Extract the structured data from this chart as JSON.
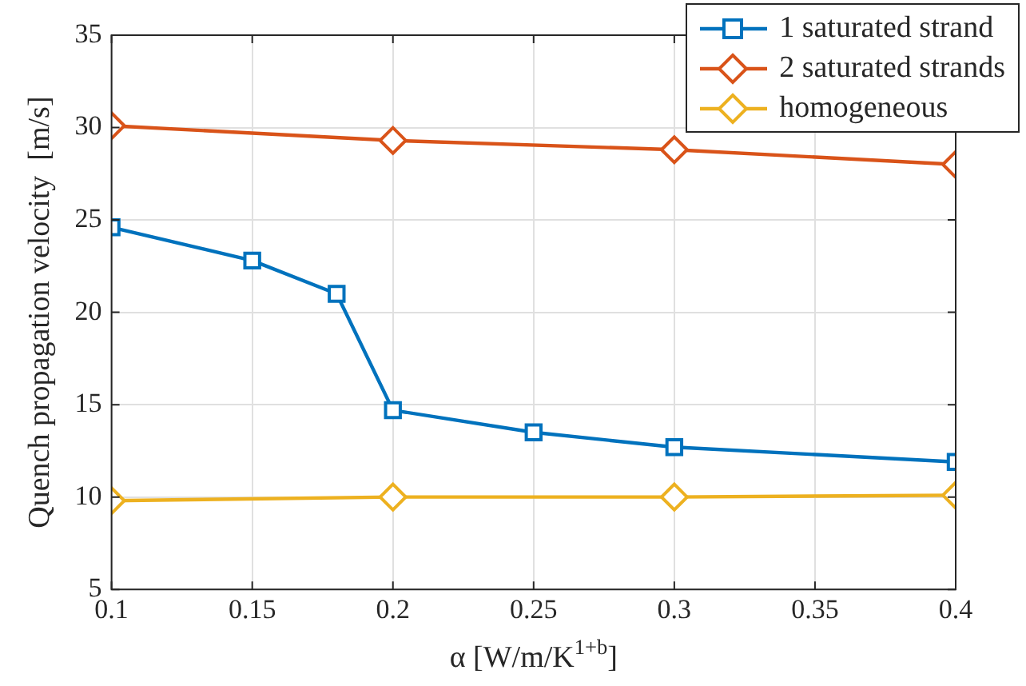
{
  "chart_data": {
    "type": "line",
    "xlabel": "α [W/m/K$^{1+b}$]",
    "ylabel": "Quench propagation velocity  [m/s]",
    "xlim": [
      0.1,
      0.4
    ],
    "xticks": [
      0.1,
      0.15,
      0.2,
      0.25,
      0.3,
      0.35,
      0.4
    ],
    "ylim": [
      5,
      35
    ],
    "yticks": [
      5,
      10,
      15,
      20,
      25,
      30,
      35
    ],
    "grid": true,
    "legend": "top right",
    "line_style": "solid",
    "series": [
      {
        "name": "1 saturated strand",
        "color": "#0072bd",
        "marker": "square",
        "x": [
          0.1,
          0.15,
          0.18,
          0.2,
          0.25,
          0.3,
          0.4
        ],
        "values": [
          24.6,
          22.8,
          21.0,
          14.7,
          13.5,
          12.7,
          11.9
        ]
      },
      {
        "name": "2 saturated strands",
        "color": "#d95319",
        "marker": "diamond",
        "x": [
          0.1,
          0.2,
          0.3,
          0.4
        ],
        "values": [
          30.1,
          29.3,
          28.8,
          28.0
        ]
      },
      {
        "name": "homogeneous",
        "color": "#edb120",
        "marker": "diamond",
        "x": [
          0.1,
          0.2,
          0.3,
          0.4
        ],
        "values": [
          9.8,
          10.0,
          10.0,
          10.1
        ]
      }
    ]
  }
}
